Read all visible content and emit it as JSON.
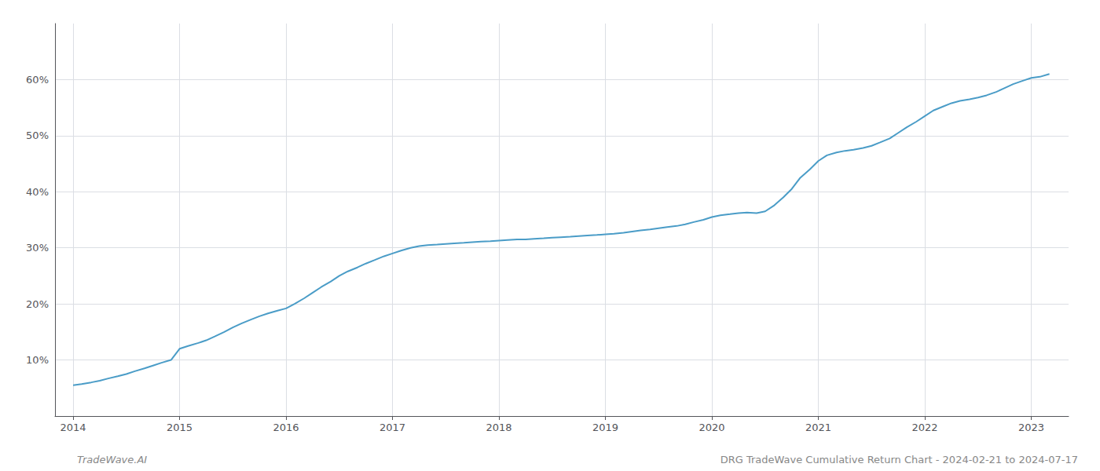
{
  "chart_data": {
    "type": "line",
    "annotations": [
      "TradeWave.AI",
      "DRG TradeWave Cumulative Return Chart - 2024-02-21 to 2024-07-17"
    ],
    "color": "#4a9cc7",
    "grid": true,
    "x": [
      2014.0,
      2014.08,
      2014.17,
      2014.25,
      2014.33,
      2014.42,
      2014.5,
      2014.58,
      2014.67,
      2014.75,
      2014.83,
      2014.92,
      2015.0,
      2015.08,
      2015.17,
      2015.25,
      2015.33,
      2015.42,
      2015.5,
      2015.58,
      2015.67,
      2015.75,
      2015.83,
      2015.92,
      2016.0,
      2016.08,
      2016.17,
      2016.25,
      2016.33,
      2016.42,
      2016.5,
      2016.58,
      2016.67,
      2016.75,
      2016.83,
      2016.92,
      2017.0,
      2017.08,
      2017.17,
      2017.25,
      2017.33,
      2017.42,
      2017.5,
      2017.58,
      2017.67,
      2017.75,
      2017.83,
      2017.92,
      2018.0,
      2018.08,
      2018.17,
      2018.25,
      2018.33,
      2018.42,
      2018.5,
      2018.58,
      2018.67,
      2018.75,
      2018.83,
      2018.92,
      2019.0,
      2019.08,
      2019.17,
      2019.25,
      2019.33,
      2019.42,
      2019.5,
      2019.58,
      2019.67,
      2019.75,
      2019.83,
      2019.92,
      2020.0,
      2020.08,
      2020.17,
      2020.25,
      2020.33,
      2020.42,
      2020.5,
      2020.58,
      2020.67,
      2020.75,
      2020.83,
      2020.92,
      2021.0,
      2021.08,
      2021.17,
      2021.25,
      2021.33,
      2021.42,
      2021.5,
      2021.58,
      2021.67,
      2021.75,
      2021.83,
      2021.92,
      2022.0,
      2022.08,
      2022.17,
      2022.25,
      2022.33,
      2022.42,
      2022.5,
      2022.58,
      2022.67,
      2022.75,
      2022.83,
      2022.92,
      2023.0,
      2023.08,
      2023.17
    ],
    "values": [
      5.5,
      5.7,
      6.0,
      6.3,
      6.7,
      7.1,
      7.5,
      8.0,
      8.5,
      9.0,
      9.5,
      10.0,
      12.0,
      12.5,
      13.0,
      13.5,
      14.2,
      15.0,
      15.8,
      16.5,
      17.2,
      17.8,
      18.3,
      18.8,
      19.2,
      20.0,
      21.0,
      22.0,
      23.0,
      24.0,
      25.0,
      25.8,
      26.5,
      27.2,
      27.8,
      28.5,
      29.0,
      29.5,
      30.0,
      30.3,
      30.5,
      30.6,
      30.7,
      30.8,
      30.9,
      31.0,
      31.1,
      31.2,
      31.3,
      31.4,
      31.5,
      31.5,
      31.6,
      31.7,
      31.8,
      31.9,
      32.0,
      32.1,
      32.2,
      32.3,
      32.4,
      32.5,
      32.7,
      32.9,
      33.1,
      33.3,
      33.5,
      33.7,
      33.9,
      34.2,
      34.6,
      35.0,
      35.5,
      35.8,
      36.0,
      36.2,
      36.3,
      36.2,
      36.5,
      37.5,
      39.0,
      40.5,
      42.5,
      44.0,
      45.5,
      46.5,
      47.0,
      47.3,
      47.5,
      47.8,
      48.2,
      48.8,
      49.5,
      50.5,
      51.5,
      52.5,
      53.5,
      54.5,
      55.2,
      55.8,
      56.2,
      56.5,
      56.8,
      57.2,
      57.8,
      58.5,
      59.2,
      59.8,
      60.3,
      60.5,
      61.0
    ],
    "xlim": [
      2013.83,
      2023.35
    ],
    "xticks": [
      2014,
      2015,
      2016,
      2017,
      2018,
      2019,
      2020,
      2021,
      2022,
      2023
    ],
    "ylim": [
      0,
      70
    ],
    "yticks": [
      {
        "value": 10,
        "label": "10%"
      },
      {
        "value": 20,
        "label": "20%"
      },
      {
        "value": 30,
        "label": "30%"
      },
      {
        "value": 40,
        "label": "40%"
      },
      {
        "value": 50,
        "label": "50%"
      },
      {
        "value": 60,
        "label": "60%"
      }
    ]
  }
}
